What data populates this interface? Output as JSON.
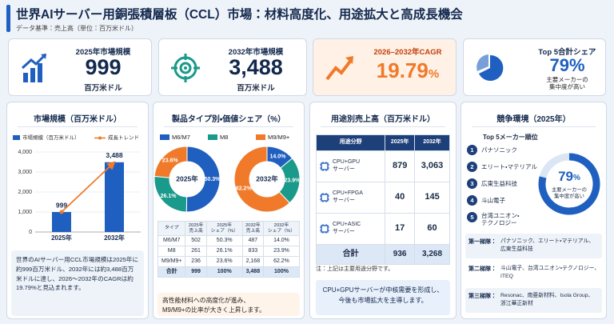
{
  "header": {
    "title": "世界AIサーバー用銅張積層板（CCL）市場：材料高度化、用途拡大と高成長機会",
    "subtitle": "データ基準：売上高（単位：百万米ドル）"
  },
  "kpis": [
    {
      "label": "2025年市場規模",
      "value": "999",
      "unit": "百万米ドル"
    },
    {
      "label": "2032年市場規模",
      "value": "3,488",
      "unit": "百万米ドル"
    },
    {
      "label": "2026–2032年CAGR",
      "value": "19.79",
      "unit": "%"
    },
    {
      "label": "Top 5合計シェア",
      "value": "79%",
      "unit": "主要メーカーの\n集中度が高い"
    }
  ],
  "market": {
    "title": "市場規模（百万米ドル）",
    "chart": {
      "type": "bar",
      "categories": [
        "2025年",
        "2032年"
      ],
      "series": [
        {
          "name": "市場規模（百万米ドル）",
          "color": "#1f5fbf",
          "values": [
            999,
            3488
          ],
          "value_labels": [
            "999",
            "3,488"
          ]
        }
      ],
      "trend": {
        "name": "成長トレンド",
        "color": "#f07a2a"
      },
      "ylim": [
        0,
        4000
      ],
      "yticks": [
        0,
        {
          "value": 1000,
          "label": "1,000"
        },
        {
          "value": 2000,
          "label": "2,000"
        },
        {
          "value": 3000,
          "label": "3,000"
        },
        {
          "value": 4000,
          "label": "4,000"
        }
      ]
    },
    "note": "世界のAIサーバー用CCL市場規模は2025年に約999百万米ドル、2032年には約3,488百万米ドルに達し、2026～2032年のCAGRは約19.79%と見込まれます。"
  },
  "product": {
    "title": "製品タイプ別・価値シェア（%）",
    "categories": [
      "M6/M7",
      "M8",
      "M9/M9+"
    ],
    "colors": [
      "#1f5fbf",
      "#1a9a8a",
      "#f07a2a"
    ],
    "donuts": [
      {
        "type": "pie",
        "label": "2025年",
        "values": [
          50.3,
          26.1,
          23.6
        ],
        "value_labels": [
          "50.3%",
          "26.1%",
          "23.6%"
        ]
      },
      {
        "type": "pie",
        "label": "2032年",
        "values": [
          14.0,
          23.9,
          62.2
        ],
        "value_labels": [
          "14.0%",
          "23.9%",
          "62.2%"
        ]
      }
    ],
    "table": {
      "header": [
        "タイプ",
        "2025年\n売上高",
        "2025年\nシェア（%）",
        "2032年\n売上高",
        "2032年\nシェア（%）"
      ],
      "rows": [
        [
          "M6/M7",
          "502",
          "50.3%",
          "487",
          "14.0%"
        ],
        [
          "M8",
          "261",
          "26.1%",
          "833",
          "23.9%"
        ],
        [
          "M9/M9+",
          "236",
          "23.6%",
          "2,168",
          "62.2%"
        ],
        [
          "合計",
          "999",
          "100%",
          "3,488",
          "100%"
        ]
      ]
    },
    "note": "高性能材料への高度化が進み、\nM9/M9+の比率が大きく上昇します。"
  },
  "application": {
    "title": "用途別売上高（百万米ドル）",
    "table": {
      "header": [
        "用途分野",
        "2025年",
        "2032年"
      ],
      "rows": [
        [
          "CPU+GPU\nサーバー",
          "879",
          "3,063"
        ],
        [
          "CPU+FPGA\nサーバー",
          "40",
          "145"
        ],
        [
          "CPU+ASIC\nサーバー",
          "17",
          "60"
        ],
        [
          "合計",
          "936",
          "3,268"
        ]
      ]
    },
    "footnote": "注：上記は主要用途分野です。",
    "callout": "CPU+GPUサーバーが中核需要を形成し、\n今後も市場拡大を主導します。"
  },
  "competition": {
    "title": "競争環境（2025年）",
    "subtitle": "Top 5メーカー順位",
    "ranking": [
      {
        "rank": "1",
        "name": "パナソニック"
      },
      {
        "rank": "2",
        "name": "エリート・マテリアル"
      },
      {
        "rank": "3",
        "name": "広東生益科技"
      },
      {
        "rank": "4",
        "name": "斗山電子"
      },
      {
        "rank": "5",
        "name": "台湾ユニオン・\nテクノロジー"
      }
    ],
    "ring": {
      "value": 79,
      "unit": "%",
      "note": "主要メーカーの\n集中度が高い"
    },
    "tiers": [
      {
        "label": "第一梯隊：",
        "text": "パナソニック、エリート・マテリアル、\n広東生益科技"
      },
      {
        "label": "第二梯隊：",
        "text": "斗山電子、台湾ユニオン・テクノロジー、\nITEQ"
      },
      {
        "label": "第三梯隊：",
        "text": "Resonac、南亜新材料、Isola Group、\n浙江華正新材"
      }
    ]
  }
}
